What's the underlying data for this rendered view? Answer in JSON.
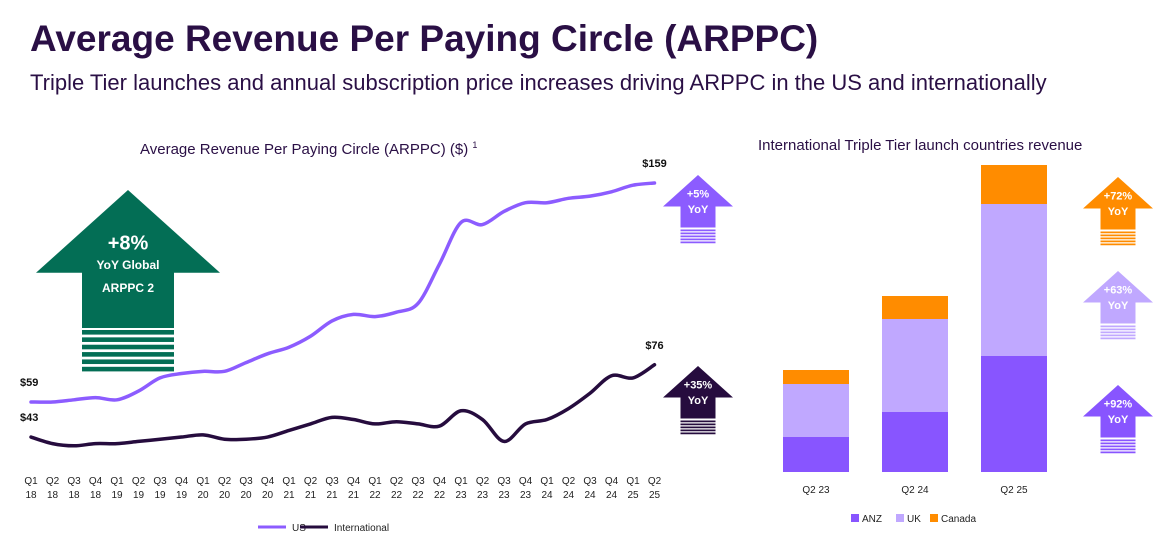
{
  "header": {
    "title": "Average Revenue Per Paying Circle (ARPPC)",
    "subtitle": "Triple Tier launches and annual subscription price increases driving ARPPC in the US and internationally"
  },
  "colors": {
    "title": "#2a0f45",
    "us": "#8c5cff",
    "international": "#260c3e",
    "green": "#036e55",
    "anz": "#8855ff",
    "uk": "#c0a8ff",
    "canada": "#ff8c00"
  },
  "global_badge": {
    "value": "+8%",
    "line1": "YoY Global",
    "line2": "ARPPC",
    "sup": "2"
  },
  "chart_data": [
    {
      "type": "line",
      "title": "Average Revenue Per Paying Circle (ARPPC) ($)",
      "title_sup": "1",
      "categories": [
        [
          "Q1",
          "18"
        ],
        [
          "Q2",
          "18"
        ],
        [
          "Q3",
          "18"
        ],
        [
          "Q4",
          "18"
        ],
        [
          "Q1",
          "19"
        ],
        [
          "Q2",
          "19"
        ],
        [
          "Q3",
          "19"
        ],
        [
          "Q4",
          "19"
        ],
        [
          "Q1",
          "20"
        ],
        [
          "Q2",
          "20"
        ],
        [
          "Q3",
          "20"
        ],
        [
          "Q4",
          "20"
        ],
        [
          "Q1",
          "21"
        ],
        [
          "Q2",
          "21"
        ],
        [
          "Q3",
          "21"
        ],
        [
          "Q4",
          "21"
        ],
        [
          "Q1",
          "22"
        ],
        [
          "Q2",
          "22"
        ],
        [
          "Q3",
          "22"
        ],
        [
          "Q4",
          "22"
        ],
        [
          "Q1",
          "23"
        ],
        [
          "Q2",
          "23"
        ],
        [
          "Q3",
          "23"
        ],
        [
          "Q4",
          "23"
        ],
        [
          "Q1",
          "24"
        ],
        [
          "Q2",
          "24"
        ],
        [
          "Q3",
          "24"
        ],
        [
          "Q4",
          "24"
        ],
        [
          "Q1",
          "25"
        ],
        [
          "Q2",
          "25"
        ]
      ],
      "series": [
        {
          "name": "US",
          "values": [
            59,
            59,
            60,
            61,
            60,
            64,
            70,
            72,
            73,
            73,
            77,
            81,
            84,
            89,
            96,
            99,
            98,
            100,
            104,
            122,
            141,
            140,
            146,
            150,
            150,
            152,
            153,
            155,
            158,
            159
          ],
          "start_label": "$59",
          "end_label": "$159",
          "yoy": "+5%",
          "yoy_sub": "YoY"
        },
        {
          "name": "International",
          "values": [
            43,
            40,
            39,
            40,
            40,
            41,
            42,
            43,
            44,
            42,
            42,
            43,
            46,
            49,
            52,
            51,
            49,
            50,
            49,
            48,
            55,
            51,
            41,
            49,
            51,
            56,
            63,
            71,
            70,
            76
          ],
          "start_label": "$43",
          "end_label": "$76",
          "yoy": "+35%",
          "yoy_sub": "YoY"
        }
      ],
      "legend": "bottom",
      "grid": false
    },
    {
      "type": "bar",
      "stacked": true,
      "title": "International Triple Tier launch countries revenue",
      "categories": [
        "Q2 23",
        "Q2 24",
        "Q2 25"
      ],
      "series": [
        {
          "name": "ANZ",
          "values": [
            35,
            60,
            116
          ],
          "yoy": "+92%",
          "yoy_sub": "YoY"
        },
        {
          "name": "UK",
          "values": [
            53,
            93,
            152
          ],
          "yoy": "+63%",
          "yoy_sub": "YoY"
        },
        {
          "name": "Canada",
          "values": [
            14,
            23,
            39
          ],
          "yoy": "+72%",
          "yoy_sub": "YoY"
        }
      ],
      "legend": "bottom"
    }
  ]
}
